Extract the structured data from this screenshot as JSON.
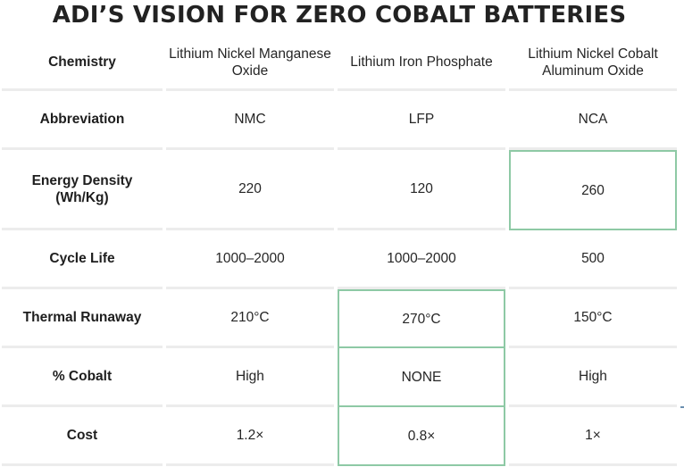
{
  "title": "ADI’S VISION FOR ZERO COBALT BATTERIES",
  "columns": [
    "Chemistry",
    "Lithium Nickel Manganese Oxide",
    "Lithium Iron Phosphate",
    "Lithium Nickel Cobalt Aluminum Oxide"
  ],
  "rows": [
    {
      "label": "Abbreviation",
      "values": [
        "NMC",
        "LFP",
        "NCA"
      ]
    },
    {
      "label": "Energy Density (Wh/Kg)",
      "values": [
        "220",
        "120",
        "260"
      ]
    },
    {
      "label": "Cycle Life",
      "values": [
        "1000–2000",
        "1000–2000",
        "500"
      ]
    },
    {
      "label": "Thermal Runaway",
      "values": [
        "210°C",
        "270°C",
        "150°C"
      ]
    },
    {
      "label": "% Cobalt",
      "values": [
        "High",
        "NONE",
        "High"
      ]
    },
    {
      "label": "Cost",
      "values": [
        "1.2×",
        "0.8×",
        "1×"
      ]
    }
  ],
  "colors": {
    "highlight_border": "#8ec9a5",
    "row_divider": "#ececec",
    "title_text": "#222222"
  }
}
